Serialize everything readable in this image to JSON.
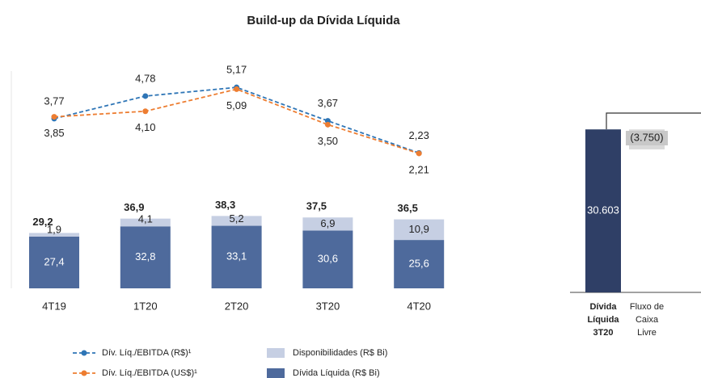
{
  "chart_data": [
    {
      "type": "bar_line",
      "title": "Build-up da Dívida Líquida",
      "categories": [
        "4T19",
        "1T20",
        "2T20",
        "3T20",
        "4T20"
      ],
      "series": [
        {
          "name": "Dívida Líquida (R$ Bi)",
          "type": "bar",
          "color": "#4e6a9c",
          "values": [
            27.4,
            32.8,
            33.1,
            30.6,
            25.6
          ],
          "value_labels": [
            "27,4",
            "32,8",
            "33,1",
            "30,6",
            "25,6"
          ]
        },
        {
          "name": "Disponibilidades (R$ Bi)",
          "type": "bar",
          "color": "#c6cfe3",
          "values": [
            1.9,
            4.1,
            5.2,
            6.9,
            10.9
          ],
          "value_labels": [
            "1,9",
            "4,1",
            "5,2",
            "6,9",
            "10,9"
          ]
        },
        {
          "name": "Dív. Líq./EBITDA (R$)¹",
          "type": "line",
          "axis": "y2",
          "color": "#2e75b6",
          "values": [
            3.77,
            4.78,
            5.17,
            3.67,
            2.23
          ],
          "value_labels": [
            "3,77",
            "4,78",
            "5,17",
            "3,67",
            "2,23"
          ]
        },
        {
          "name": "Dív. Líq./EBITDA (US$)¹",
          "type": "line",
          "axis": "y2",
          "color": "#ed7d31",
          "values": [
            3.85,
            4.1,
            5.09,
            3.5,
            2.21
          ],
          "value_labels": [
            "3,85",
            "4,10",
            "5,09",
            "3,50",
            "2,21"
          ]
        }
      ],
      "totals": [
        29.2,
        36.9,
        38.3,
        37.5,
        36.5
      ],
      "total_labels": [
        "29,2",
        "36,9",
        "38,3",
        "37,5",
        "36,5"
      ],
      "ylim": [
        0,
        40
      ],
      "y2lim": [
        0,
        8
      ]
    },
    {
      "type": "waterfall",
      "categories": [
        [
          "Dívida",
          "Líquida",
          "3T20"
        ],
        [
          "Fluxo de",
          "Caixa",
          "Livre"
        ]
      ],
      "values": [
        30603,
        -3750
      ],
      "value_labels": [
        "30.603",
        "(3.750)"
      ],
      "colors": [
        "#2f3f66",
        "#d9d9d9"
      ],
      "ylim": [
        0,
        32000
      ]
    }
  ]
}
